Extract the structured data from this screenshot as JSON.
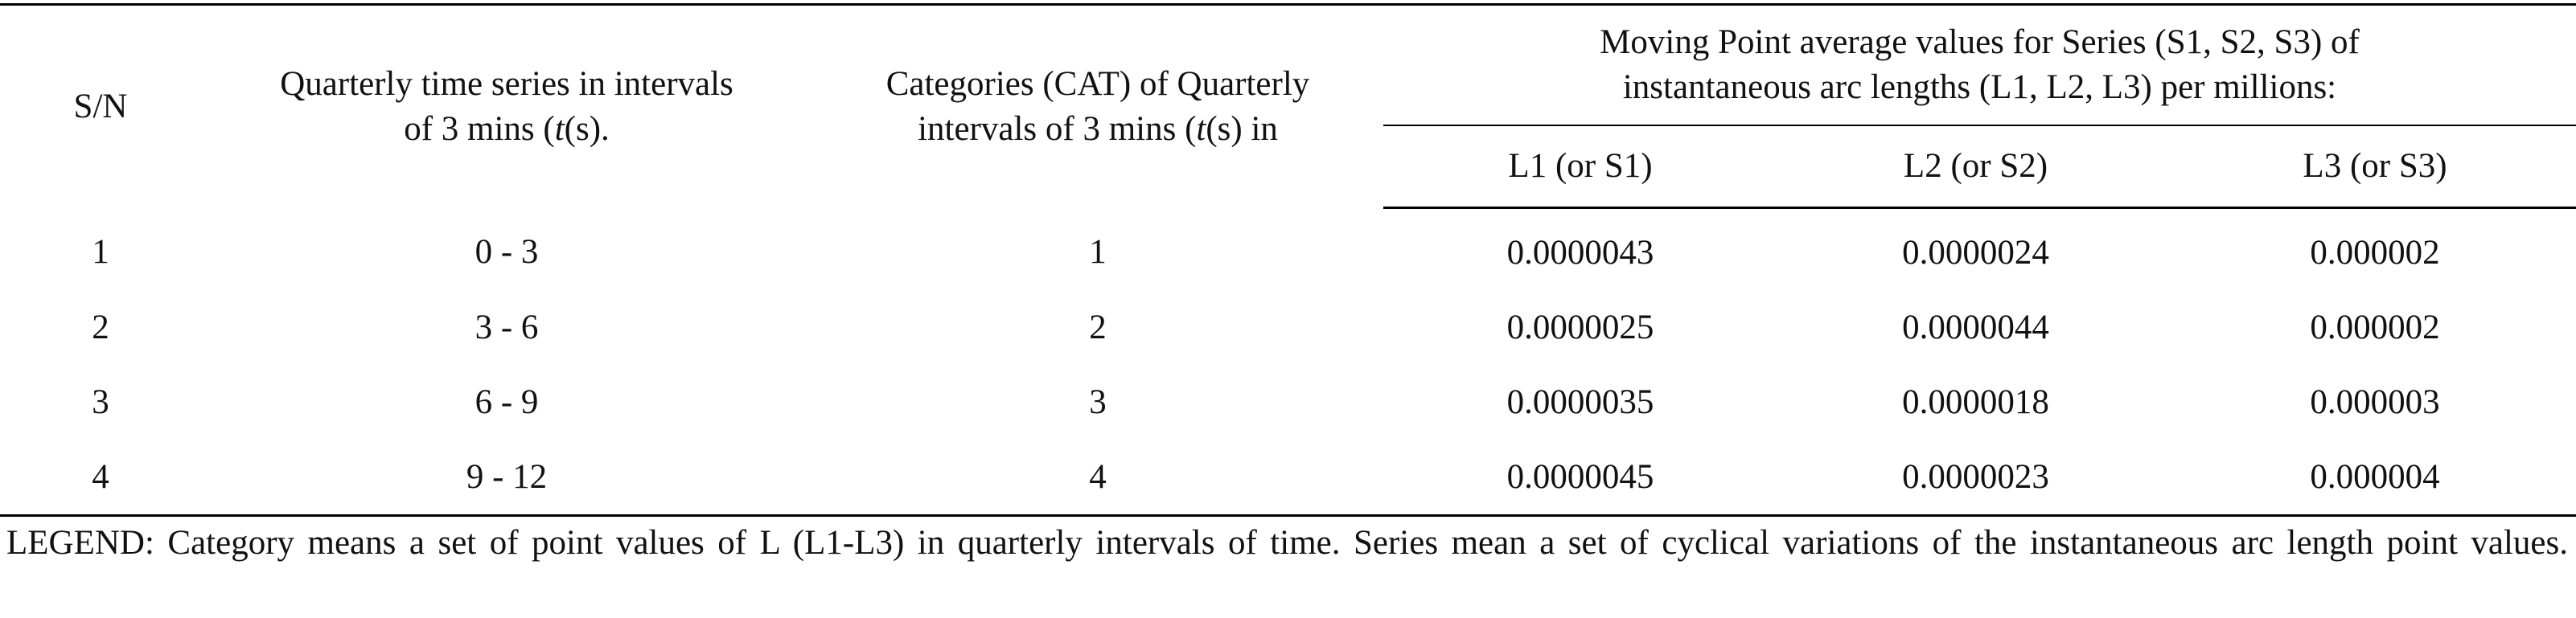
{
  "table": {
    "header": {
      "sn": "S/N",
      "time_series_line1": "Quarterly time series in intervals",
      "time_series_line2_pre": "of 3 mins (",
      "time_series_line2_italic": "t",
      "time_series_line2_post": "(s).",
      "categories_line1": "Categories (CAT) of Quarterly",
      "categories_line2_pre": "intervals of 3 mins (",
      "categories_line2_italic": "t",
      "categories_line2_post": "(s) in",
      "group_line1": "Moving Point average values for Series (S1, S2, S3) of",
      "group_line2": "instantaneous arc lengths (L1, L2, L3) per millions:",
      "l1": "L1 (or S1)",
      "l2": "L2 (or S2)",
      "l3": "L3 (or S3)"
    },
    "rows": [
      {
        "sn": "1",
        "interval": "0 - 3",
        "cat": "1",
        "l1": "0.0000043",
        "l2": "0.0000024",
        "l3": "0.000002"
      },
      {
        "sn": "2",
        "interval": "3 - 6",
        "cat": "2",
        "l1": "0.0000025",
        "l2": "0.0000044",
        "l3": "0.000002"
      },
      {
        "sn": "3",
        "interval": "6 - 9",
        "cat": "3",
        "l1": "0.0000035",
        "l2": "0.0000018",
        "l3": "0.000003"
      },
      {
        "sn": "4",
        "interval": "9 - 12",
        "cat": "4",
        "l1": "0.0000045",
        "l2": "0.0000023",
        "l3": "0.000004"
      }
    ]
  },
  "legend": "LEGEND: Category means a set of point values of L (L1-L3) in quarterly intervals of time. Series mean a set of cyclical variations of the instantaneous arc length point values."
}
